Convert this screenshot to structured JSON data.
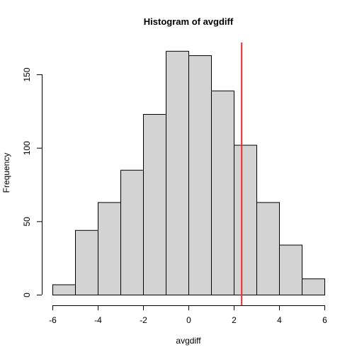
{
  "chart_data": {
    "type": "bar",
    "title": "Histogram of avgdiff",
    "xlabel": "avgdiff",
    "ylabel": "Frequency",
    "bin_edges": [
      -6,
      -5,
      -4,
      -3,
      -2,
      -1,
      0,
      1,
      2,
      3,
      4,
      5,
      6
    ],
    "values": [
      7,
      44,
      63,
      85,
      123,
      166,
      163,
      139,
      102,
      63,
      34,
      11
    ],
    "xlim": [
      -6,
      6
    ],
    "ylim": [
      0,
      172
    ],
    "x_ticks": [
      -6,
      -4,
      -2,
      0,
      2,
      4,
      6
    ],
    "y_ticks": [
      0,
      50,
      100,
      150
    ],
    "x_tick_labels": [
      "-6",
      "-4",
      "-2",
      "0",
      "2",
      "4",
      "6"
    ],
    "y_tick_labels": [
      "0",
      "50",
      "100",
      "150"
    ],
    "bar_fill": "#d3d3d3",
    "bar_stroke": "#000000",
    "reference_line": {
      "x": 2.35,
      "color": "#ee2a2a"
    },
    "grid": false
  }
}
